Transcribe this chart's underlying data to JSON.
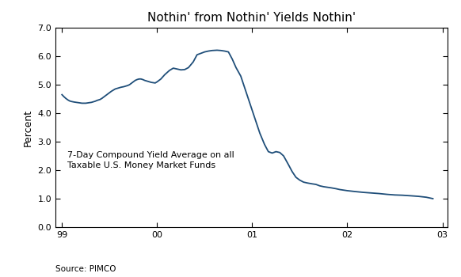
{
  "title": "Nothin' from Nothin' Yields Nothin'",
  "ylabel": "Percent",
  "xlabel_source": "Source: PIMCO",
  "annotation": "7-Day Compound Yield Average on all\nTaxable U.S. Money Market Funds",
  "line_color": "#1f4e79",
  "ylim": [
    0.0,
    7.0
  ],
  "yticks": [
    0.0,
    1.0,
    2.0,
    3.0,
    4.0,
    5.0,
    6.0,
    7.0
  ],
  "xtick_positions": [
    1999,
    2000,
    2001,
    2002,
    2003
  ],
  "xtick_labels": [
    "99",
    "00",
    "01",
    "02",
    "03"
  ],
  "x_start": 1998.93,
  "x_end": 2003.05,
  "data_x": [
    1999.0,
    1999.02,
    1999.04,
    1999.06,
    1999.08,
    1999.1,
    1999.13,
    1999.15,
    1999.17,
    1999.19,
    1999.21,
    1999.23,
    1999.25,
    1999.27,
    1999.29,
    1999.31,
    1999.33,
    1999.35,
    1999.37,
    1999.4,
    1999.42,
    1999.44,
    1999.46,
    1999.48,
    1999.5,
    1999.52,
    1999.54,
    1999.56,
    1999.58,
    1999.6,
    1999.62,
    1999.65,
    1999.67,
    1999.69,
    1999.71,
    1999.73,
    1999.75,
    1999.77,
    1999.79,
    1999.81,
    1999.83,
    1999.85,
    1999.87,
    1999.9,
    1999.92,
    1999.94,
    1999.96,
    1999.98,
    2000.0,
    2000.04,
    2000.08,
    2000.13,
    2000.17,
    2000.21,
    2000.25,
    2000.29,
    2000.33,
    2000.38,
    2000.42,
    2000.46,
    2000.5,
    2000.54,
    2000.58,
    2000.63,
    2000.67,
    2000.71,
    2000.75,
    2000.79,
    2000.83,
    2000.88,
    2000.92,
    2000.96,
    2001.0,
    2001.04,
    2001.08,
    2001.13,
    2001.17,
    2001.21,
    2001.25,
    2001.29,
    2001.33,
    2001.38,
    2001.42,
    2001.46,
    2001.5,
    2001.54,
    2001.58,
    2001.63,
    2001.67,
    2001.71,
    2001.75,
    2001.79,
    2001.83,
    2001.88,
    2001.92,
    2001.96,
    2002.0,
    2002.08,
    2002.17,
    2002.25,
    2002.33,
    2002.42,
    2002.5,
    2002.58,
    2002.67,
    2002.75,
    2002.83,
    2002.9
  ],
  "data_y": [
    4.65,
    4.58,
    4.52,
    4.47,
    4.43,
    4.41,
    4.39,
    4.38,
    4.37,
    4.36,
    4.35,
    4.35,
    4.35,
    4.36,
    4.37,
    4.38,
    4.4,
    4.42,
    4.45,
    4.48,
    4.52,
    4.57,
    4.62,
    4.67,
    4.72,
    4.77,
    4.81,
    4.85,
    4.87,
    4.89,
    4.91,
    4.93,
    4.95,
    4.97,
    5.0,
    5.05,
    5.1,
    5.15,
    5.18,
    5.2,
    5.2,
    5.18,
    5.15,
    5.12,
    5.1,
    5.08,
    5.07,
    5.06,
    5.1,
    5.2,
    5.35,
    5.5,
    5.58,
    5.55,
    5.52,
    5.53,
    5.6,
    5.8,
    6.05,
    6.1,
    6.15,
    6.18,
    6.2,
    6.21,
    6.2,
    6.18,
    6.15,
    5.9,
    5.6,
    5.3,
    4.9,
    4.5,
    4.1,
    3.7,
    3.3,
    2.9,
    2.65,
    2.6,
    2.65,
    2.62,
    2.5,
    2.2,
    1.95,
    1.75,
    1.65,
    1.58,
    1.55,
    1.52,
    1.5,
    1.45,
    1.42,
    1.4,
    1.38,
    1.35,
    1.32,
    1.3,
    1.28,
    1.25,
    1.22,
    1.2,
    1.18,
    1.15,
    1.13,
    1.12,
    1.1,
    1.08,
    1.05,
    1.0
  ],
  "figsize": [
    5.82,
    3.5
  ],
  "dpi": 100,
  "title_fontsize": 11,
  "ylabel_fontsize": 9,
  "tick_fontsize": 8,
  "annotation_fontsize": 8,
  "source_fontsize": 7.5,
  "linewidth": 1.3
}
